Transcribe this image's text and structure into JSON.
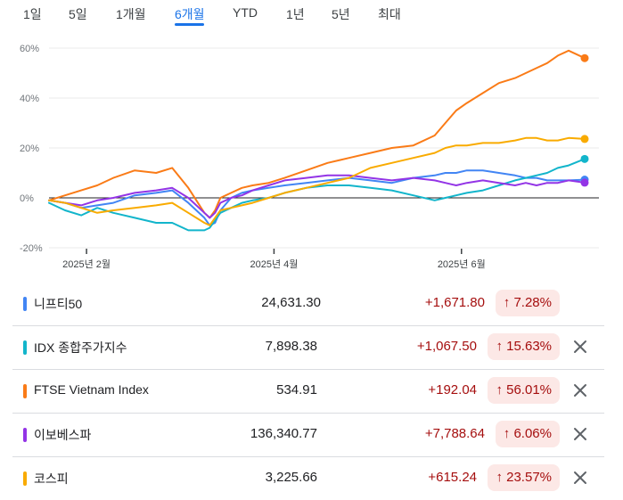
{
  "range_tabs": [
    {
      "label": "1일"
    },
    {
      "label": "5일"
    },
    {
      "label": "1개월"
    },
    {
      "label": "6개월"
    },
    {
      "label": "YTD"
    },
    {
      "label": "1년"
    },
    {
      "label": "5년"
    },
    {
      "label": "최대"
    }
  ],
  "active_tab": "6개월",
  "chart_data": {
    "type": "line",
    "title": "",
    "xlabel": "",
    "ylabel": "",
    "y_tick_labels": [
      "60%",
      "40%",
      "20%",
      "0%",
      "-20%"
    ],
    "y_ticks": [
      60,
      40,
      20,
      0,
      -20
    ],
    "ylim": [
      -20,
      60
    ],
    "x_tick_labels": [
      "2025년 2월",
      "2025년 4월",
      "2025년 6월"
    ],
    "x_tick_positions": [
      0.07,
      0.42,
      0.77
    ],
    "x": [
      0.0,
      0.03,
      0.06,
      0.09,
      0.12,
      0.16,
      0.2,
      0.23,
      0.26,
      0.29,
      0.3,
      0.31,
      0.32,
      0.34,
      0.36,
      0.38,
      0.41,
      0.44,
      0.48,
      0.52,
      0.56,
      0.6,
      0.64,
      0.68,
      0.72,
      0.74,
      0.76,
      0.78,
      0.81,
      0.84,
      0.87,
      0.89,
      0.91,
      0.93,
      0.95,
      0.97,
      1.0
    ],
    "series": [
      {
        "name": "니프티50",
        "color": "#4285f4",
        "values": [
          -1,
          -2,
          -4,
          -3,
          -2,
          1,
          2,
          3,
          -2,
          -8,
          -11,
          -10,
          -5,
          0,
          2,
          3,
          4,
          5,
          6,
          7,
          8,
          7,
          6,
          8,
          9,
          10,
          10,
          11,
          11,
          10,
          9,
          8,
          8,
          7,
          7,
          7,
          7.3
        ]
      },
      {
        "name": "IDX 종합주가지수",
        "color": "#12b5cb",
        "values": [
          -2,
          -5,
          -7,
          -4,
          -6,
          -8,
          -10,
          -10,
          -13,
          -13,
          -12,
          -9,
          -6,
          -4,
          -2,
          -1,
          0,
          2,
          4,
          5,
          5,
          4,
          3,
          1,
          -1,
          0,
          1,
          2,
          3,
          5,
          7,
          8,
          9,
          10,
          12,
          13,
          15.6
        ]
      },
      {
        "name": "FTSE Vietnam Index",
        "color": "#fa7b17",
        "values": [
          -1,
          1,
          3,
          5,
          8,
          11,
          10,
          12,
          4,
          -6,
          -8,
          -5,
          0,
          2,
          4,
          5,
          6,
          8,
          11,
          14,
          16,
          18,
          20,
          21,
          25,
          30,
          35,
          38,
          42,
          46,
          48,
          50,
          52,
          54,
          57,
          59,
          56
        ]
      },
      {
        "name": "이보베스파",
        "color": "#9334e6",
        "values": [
          -1,
          -2,
          -3,
          -1,
          0,
          2,
          3,
          4,
          0,
          -6,
          -8,
          -6,
          -2,
          0,
          1,
          3,
          5,
          7,
          8,
          9,
          9,
          8,
          7,
          8,
          7,
          6,
          5,
          6,
          7,
          6,
          5,
          6,
          5,
          6,
          6,
          7,
          6.1
        ]
      },
      {
        "name": "코스피",
        "color": "#f9ab00",
        "values": [
          -1,
          -2,
          -4,
          -6,
          -5,
          -4,
          -3,
          -2,
          -6,
          -10,
          -11,
          -8,
          -5,
          -4,
          -3,
          -2,
          0,
          2,
          4,
          6,
          8,
          12,
          14,
          16,
          18,
          20,
          21,
          21,
          22,
          22,
          23,
          24,
          24,
          23,
          23,
          24,
          23.6
        ]
      }
    ]
  },
  "rows": [
    {
      "name": "니프티50",
      "price": "24,631.30",
      "change": "+1,671.80",
      "pct": "7.28%",
      "color": "#4285f4",
      "removable": false
    },
    {
      "name": "IDX 종합주가지수",
      "price": "7,898.38",
      "change": "+1,067.50",
      "pct": "15.63%",
      "color": "#12b5cb",
      "removable": true
    },
    {
      "name": "FTSE Vietnam Index",
      "price": "534.91",
      "change": "+192.04",
      "pct": "56.01%",
      "color": "#fa7b17",
      "removable": true
    },
    {
      "name": "이보베스파",
      "price": "136,340.77",
      "change": "+7,788.64",
      "pct": "6.06%",
      "color": "#9334e6",
      "removable": true
    },
    {
      "name": "코스피",
      "price": "3,225.66",
      "change": "+615.24",
      "pct": "23.57%",
      "color": "#f9ab00",
      "removable": true
    }
  ]
}
